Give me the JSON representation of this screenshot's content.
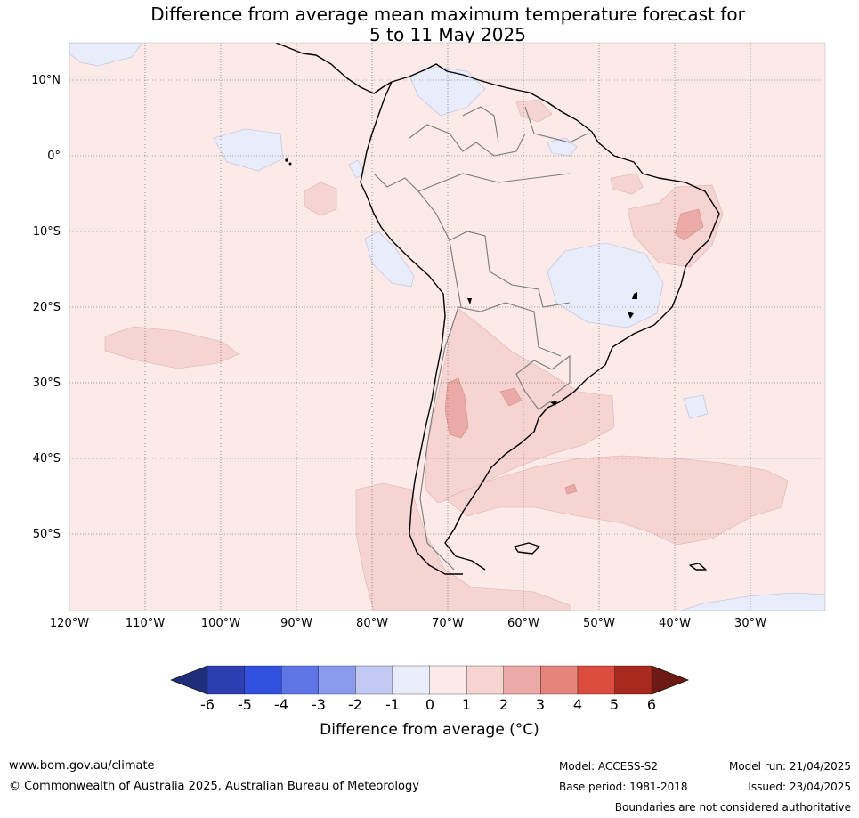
{
  "title": {
    "line1": "Difference from average mean maximum temperature forecast for",
    "line2": "5 to 11 May 2025"
  },
  "map": {
    "lat_labels": [
      "10°N",
      "0°",
      "10°S",
      "20°S",
      "30°S",
      "40°S",
      "50°S"
    ],
    "lon_labels": [
      "120°W",
      "110°W",
      "100°W",
      "90°W",
      "80°W",
      "70°W",
      "60°W",
      "50°W",
      "40°W",
      "30°W"
    ],
    "background_color": "#fbeae8",
    "land_line_color": "#000000",
    "border_line_color": "#808080",
    "gridline_style": "dotted"
  },
  "colorbar": {
    "ticks": [
      "-6",
      "-5",
      "-4",
      "-3",
      "-2",
      "-1",
      "0",
      "1",
      "2",
      "3",
      "4",
      "5",
      "6"
    ],
    "colors": [
      "#1f2e7a",
      "#2b3fb3",
      "#3150e0",
      "#5f74e6",
      "#8a9bee",
      "#c1c8f2",
      "#e9ecfa",
      "#fbeae8",
      "#f5d4d1",
      "#ebaaa6",
      "#e6837b",
      "#dc4c3f",
      "#a8291d",
      "#6e1a14"
    ],
    "label": "Difference from average (°C)"
  },
  "footer": {
    "website": "www.bom.gov.au/climate",
    "copyright": "© Commonwealth of Australia 2025, Australian Bureau of Meteorology",
    "model": "Model: ACCESS-S2",
    "base_period": "Base period: 1981-2018",
    "model_run": "Model run: 21/04/2025",
    "issued": "Issued: 23/04/2025",
    "disclaimer": "Boundaries are not considered authoritative"
  }
}
